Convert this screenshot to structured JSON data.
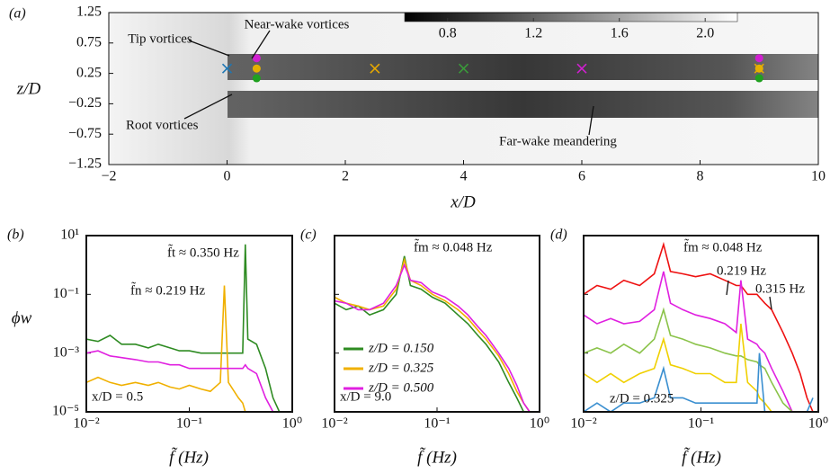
{
  "chart_data": [
    {
      "type": "scatter",
      "panel_label": "(a)",
      "xlabel": "x/D",
      "ylabel": "z/D",
      "xlim": [
        -2,
        10
      ],
      "ylim": [
        -1.25,
        1.25
      ],
      "xticks": [
        {
          "value": -2,
          "label": "−2"
        },
        0,
        2,
        4,
        6,
        8,
        10
      ],
      "yticks": [
        {
          "value": -1.25,
          "label": "−1.25"
        },
        {
          "value": -0.75,
          "label": "−0.75"
        },
        {
          "value": -0.25,
          "label": "−0.25"
        },
        0.25,
        0.75,
        1.25
      ],
      "colorbar": {
        "lim": [
          0.6,
          2.15
        ],
        "ticks": [
          0.8,
          1.2,
          1.6,
          {
            "value": 2,
            "label": "2.0"
          }
        ]
      },
      "annotations": [
        "Tip vortices",
        "Near-wake vortices",
        "Root vortices",
        "Far-wake meandering"
      ],
      "series": [
        {
          "color": "#1f77b4",
          "marker": "x",
          "x": [
            0
          ],
          "y": [
            0.33
          ]
        },
        {
          "color": "#e6a800",
          "marker": "x",
          "x": [
            2.5,
            9
          ],
          "y": [
            0.33,
            0.33
          ]
        },
        {
          "color": "#3a9a3a",
          "marker": "x",
          "x": [
            4
          ],
          "y": [
            0.33
          ]
        },
        {
          "color": "#d020d0",
          "marker": "x",
          "x": [
            6
          ],
          "y": [
            0.33
          ]
        },
        {
          "color": "#d020d0",
          "marker": "o",
          "x": [
            0.5,
            9
          ],
          "y": [
            0.5,
            0.5
          ]
        },
        {
          "color": "#e6b000",
          "marker": "o",
          "x": [
            0.5,
            9
          ],
          "y": [
            0.33,
            0.33
          ]
        },
        {
          "color": "#1fa01f",
          "marker": "o",
          "x": [
            0.5,
            9
          ],
          "y": [
            0.17,
            0.17
          ]
        }
      ]
    },
    {
      "type": "line",
      "panel_label": "(b)",
      "xlabel": "f̃ (Hz)",
      "ylabel": "ϕw",
      "log_x": true,
      "log_y": true,
      "xlim": [
        0.01,
        1
      ],
      "ylim": [
        1e-05,
        10
      ],
      "xticks": [
        {
          "value": 0.01,
          "label": "10⁻²"
        },
        {
          "value": 0.1,
          "label": "10⁻¹"
        },
        {
          "value": 1,
          "label": "10⁰"
        }
      ],
      "yticks": [
        {
          "value": 1e-05,
          "label": "10⁻⁵"
        },
        {
          "value": 0.001,
          "label": "10⁻³"
        },
        {
          "value": 0.1,
          "label": "10⁻¹"
        },
        {
          "value": 10,
          "label": "10¹"
        }
      ],
      "annotations": [
        "f̃t ≈ 0.350 Hz",
        "f̃n ≈ 0.219 Hz",
        "x/D = 0.5"
      ],
      "x": [
        0.01,
        0.013,
        0.017,
        0.022,
        0.03,
        0.04,
        0.05,
        0.065,
        0.08,
        0.1,
        0.13,
        0.16,
        0.2,
        0.219,
        0.24,
        0.3,
        0.33,
        0.35,
        0.37,
        0.45,
        0.55,
        0.65,
        0.75,
        0.85
      ],
      "series": [
        {
          "color": "#2e8b22",
          "values": [
            0.003,
            0.0025,
            0.004,
            0.002,
            0.002,
            0.0015,
            0.002,
            0.0015,
            0.0012,
            0.0012,
            0.001,
            0.001,
            0.001,
            0.001,
            0.001,
            0.001,
            0.001,
            5,
            0.003,
            0.002,
            0.0003,
            3e-05,
            1e-05,
            1e-05
          ]
        },
        {
          "color": "#f0b000",
          "values": [
            0.0001,
            0.00015,
            0.0001,
            8e-05,
            0.0001,
            8e-05,
            0.0001,
            7e-05,
            6e-05,
            8e-05,
            6e-05,
            5e-05,
            0.0001,
            0.2,
            0.0001,
            3e-05,
            2e-05,
            1e-05,
            1e-05,
            1e-05,
            1e-05,
            1e-05,
            1e-05,
            1e-05
          ]
        },
        {
          "color": "#e020e0",
          "values": [
            0.001,
            0.0012,
            0.0008,
            0.0007,
            0.0006,
            0.0005,
            0.0005,
            0.0004,
            0.0004,
            0.0003,
            0.0003,
            0.0003,
            0.0003,
            0.0003,
            0.0003,
            0.0003,
            0.0003,
            0.0004,
            0.0003,
            0.0002,
            3e-05,
            1e-05,
            1e-05,
            1e-05
          ]
        }
      ]
    },
    {
      "type": "line",
      "panel_label": "(c)",
      "xlabel": "f̃ (Hz)",
      "log_x": true,
      "log_y": true,
      "xlim": [
        0.01,
        1
      ],
      "ylim": [
        1e-05,
        10
      ],
      "xticks": [
        {
          "value": 0.01,
          "label": "10⁻²"
        },
        {
          "value": 0.1,
          "label": "10⁻¹"
        },
        {
          "value": 1,
          "label": "10⁰"
        }
      ],
      "annotations": [
        "f̃m ≈ 0.048 Hz",
        "x/D = 9.0"
      ],
      "x": [
        0.01,
        0.013,
        0.017,
        0.022,
        0.03,
        0.04,
        0.048,
        0.055,
        0.07,
        0.09,
        0.12,
        0.16,
        0.2,
        0.25,
        0.3,
        0.4,
        0.5,
        0.6,
        0.7,
        0.8
      ],
      "series": [
        {
          "name": "z/D = 0.150",
          "color": "#2e8b22",
          "values": [
            0.05,
            0.03,
            0.04,
            0.02,
            0.03,
            0.1,
            2,
            0.2,
            0.15,
            0.08,
            0.05,
            0.02,
            0.01,
            0.004,
            0.002,
            0.0005,
            0.0001,
            3e-05,
            1e-05,
            1e-05
          ]
        },
        {
          "name": "z/D = 0.325",
          "color": "#f0b000",
          "values": [
            0.08,
            0.05,
            0.04,
            0.03,
            0.04,
            0.15,
            1.5,
            0.3,
            0.2,
            0.1,
            0.06,
            0.03,
            0.015,
            0.006,
            0.003,
            0.0008,
            0.0002,
            5e-05,
            2e-05,
            1e-05
          ]
        },
        {
          "name": "z/D = 0.500",
          "color": "#e020e0",
          "values": [
            0.06,
            0.05,
            0.03,
            0.03,
            0.05,
            0.2,
            1,
            0.3,
            0.25,
            0.12,
            0.08,
            0.04,
            0.02,
            0.008,
            0.004,
            0.001,
            0.0003,
            8e-05,
            2e-05,
            1e-05
          ]
        }
      ]
    },
    {
      "type": "line",
      "panel_label": "(d)",
      "xlabel": "f̃ (Hz)",
      "log_x": true,
      "log_y": true,
      "xlim": [
        0.01,
        1
      ],
      "ylim": [
        1e-05,
        10
      ],
      "xticks": [
        {
          "value": 0.01,
          "label": "10⁻²"
        },
        {
          "value": 0.1,
          "label": "10⁻¹"
        },
        {
          "value": 1,
          "label": "10⁰"
        }
      ],
      "annotations": [
        "f̃m ≈ 0.048 Hz",
        "0.219 Hz",
        "0.315 Hz",
        "z/D = 0.325"
      ],
      "x": [
        0.01,
        0.013,
        0.017,
        0.022,
        0.03,
        0.04,
        0.048,
        0.055,
        0.07,
        0.09,
        0.12,
        0.16,
        0.2,
        0.219,
        0.25,
        0.3,
        0.315,
        0.35,
        0.4,
        0.5,
        0.6,
        0.7,
        0.8,
        0.9
      ],
      "series": [
        {
          "color": "#ee1111",
          "values": [
            0.1,
            0.2,
            0.15,
            0.3,
            0.2,
            0.5,
            5,
            0.6,
            0.5,
            0.4,
            0.5,
            0.3,
            0.2,
            0.2,
            0.1,
            0.1,
            0.08,
            0.05,
            0.03,
            0.005,
            0.001,
            0.0002,
            3e-05,
            1e-05
          ]
        },
        {
          "color": "#e020e0",
          "values": [
            0.02,
            0.01,
            0.015,
            0.01,
            0.012,
            0.03,
            0.6,
            0.05,
            0.03,
            0.02,
            0.015,
            0.01,
            0.005,
            0.3,
            0.003,
            0.002,
            0.0015,
            0.001,
            0.0003,
            5e-05,
            1e-05,
            1e-05,
            1e-05,
            1e-05
          ]
        },
        {
          "color": "#8bc34a",
          "values": [
            0.001,
            0.0015,
            0.001,
            0.002,
            0.001,
            0.003,
            0.03,
            0.004,
            0.003,
            0.002,
            0.0015,
            0.001,
            0.0008,
            0.0008,
            0.0006,
            0.0005,
            0.0004,
            0.0003,
            0.0001,
            2e-05,
            1e-05,
            1e-05,
            1e-05,
            1e-05
          ]
        },
        {
          "color": "#f0d000",
          "values": [
            0.0002,
            0.0001,
            0.0002,
            0.0001,
            0.0002,
            0.0003,
            0.003,
            0.0004,
            0.0003,
            0.0002,
            0.0002,
            0.0001,
            0.0001,
            0.01,
            0.0001,
            5e-05,
            3e-05,
            2e-05,
            1e-05,
            1e-05,
            1e-05,
            1e-05,
            1e-05,
            1e-05
          ]
        },
        {
          "color": "#3a8fd0",
          "values": [
            1e-05,
            2e-05,
            1e-05,
            2e-05,
            2e-05,
            3e-05,
            0.0003,
            3e-05,
            3e-05,
            2e-05,
            2e-05,
            2e-05,
            2e-05,
            2e-05,
            2e-05,
            2e-05,
            0.001,
            1e-05,
            1e-05,
            1e-05,
            1e-05,
            1e-05,
            1e-05,
            3e-05
          ]
        }
      ]
    }
  ]
}
